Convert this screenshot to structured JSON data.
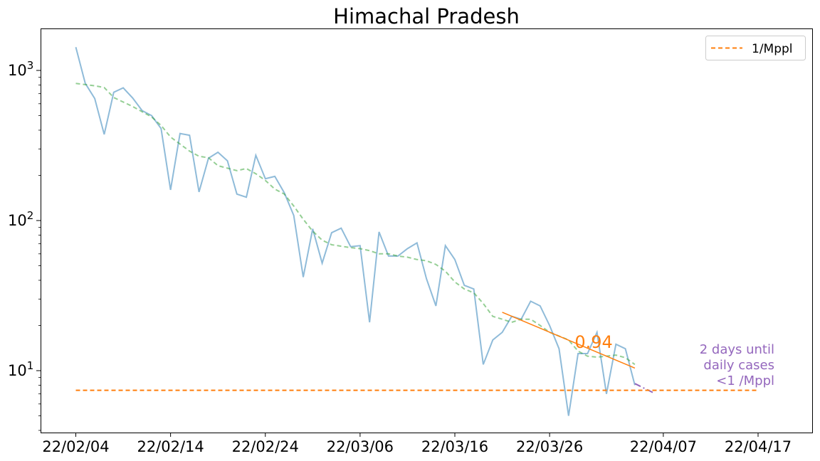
{
  "chart_data": {
    "type": "line",
    "title": "Himachal Pradesh",
    "xlabel": "",
    "ylabel": "",
    "yscale": "log",
    "ylim": [
      4,
      1900
    ],
    "x_tick_labels": [
      "22/02/04",
      "22/02/14",
      "22/02/24",
      "22/03/06",
      "22/03/16",
      "22/03/26",
      "22/04/07",
      "22/04/17"
    ],
    "y_tick_labels": [
      {
        "base": "10",
        "exp": "1",
        "value": 10
      },
      {
        "base": "10",
        "exp": "2",
        "value": 100
      },
      {
        "base": "10",
        "exp": "3",
        "value": 1000
      }
    ],
    "grid": false,
    "legend": {
      "position": "top-right",
      "entries": [
        {
          "label": "1/Mppl",
          "style": "dashed",
          "color": "#ff7f0e"
        }
      ]
    },
    "series": [
      {
        "role": "daily",
        "color": "#1f77b4",
        "opacity": 0.5,
        "style": "solid",
        "points": [
          [
            "2022-02-04",
            1430
          ],
          [
            "2022-02-05",
            820
          ],
          [
            "2022-02-06",
            650
          ],
          [
            "2022-02-07",
            375
          ],
          [
            "2022-02-08",
            715
          ],
          [
            "2022-02-09",
            765
          ],
          [
            "2022-02-10",
            655
          ],
          [
            "2022-02-11",
            540
          ],
          [
            "2022-02-12",
            500
          ],
          [
            "2022-02-13",
            410
          ],
          [
            "2022-02-14",
            160
          ],
          [
            "2022-02-15",
            380
          ],
          [
            "2022-02-16",
            370
          ],
          [
            "2022-02-17",
            155
          ],
          [
            "2022-02-18",
            260
          ],
          [
            "2022-02-19",
            285
          ],
          [
            "2022-02-20",
            250
          ],
          [
            "2022-02-21",
            150
          ],
          [
            "2022-02-22",
            143
          ],
          [
            "2022-02-23",
            272
          ],
          [
            "2022-02-24",
            190
          ],
          [
            "2022-02-25",
            197
          ],
          [
            "2022-02-26",
            153
          ],
          [
            "2022-02-27",
            108
          ],
          [
            "2022-02-28",
            42
          ],
          [
            "2022-03-01",
            88
          ],
          [
            "2022-03-02",
            52
          ],
          [
            "2022-03-03",
            83
          ],
          [
            "2022-03-04",
            89
          ],
          [
            "2022-03-05",
            67
          ],
          [
            "2022-03-06",
            68
          ],
          [
            "2022-03-07",
            21
          ],
          [
            "2022-03-08",
            84
          ],
          [
            "2022-03-09",
            58
          ],
          [
            "2022-03-10",
            58
          ],
          [
            "2022-03-11",
            65
          ],
          [
            "2022-03-12",
            71
          ],
          [
            "2022-03-13",
            41
          ],
          [
            "2022-03-14",
            27
          ],
          [
            "2022-03-15",
            68
          ],
          [
            "2022-03-16",
            55
          ],
          [
            "2022-03-17",
            37
          ],
          [
            "2022-03-18",
            35
          ],
          [
            "2022-03-19",
            11
          ],
          [
            "2022-03-20",
            16
          ],
          [
            "2022-03-21",
            18
          ],
          [
            "2022-03-22",
            23
          ],
          [
            "2022-03-23",
            22
          ],
          [
            "2022-03-24",
            29
          ],
          [
            "2022-03-25",
            27
          ],
          [
            "2022-03-26",
            20
          ],
          [
            "2022-03-27",
            14
          ],
          [
            "2022-03-28",
            5
          ],
          [
            "2022-03-29",
            13
          ],
          [
            "2022-03-30",
            13
          ],
          [
            "2022-03-31",
            18
          ],
          [
            "2022-04-01",
            7
          ],
          [
            "2022-04-02",
            15
          ],
          [
            "2022-04-03",
            14
          ],
          [
            "2022-04-04",
            8
          ]
        ]
      },
      {
        "role": "smoothed",
        "color": "#2ca02c",
        "opacity": 0.5,
        "style": "dashed",
        "points": [
          [
            "2022-02-04",
            820
          ],
          [
            "2022-02-06",
            790
          ],
          [
            "2022-02-07",
            770
          ],
          [
            "2022-02-08",
            660
          ],
          [
            "2022-02-10",
            575
          ],
          [
            "2022-02-12",
            490
          ],
          [
            "2022-02-13",
            430
          ],
          [
            "2022-02-14",
            360
          ],
          [
            "2022-02-16",
            290
          ],
          [
            "2022-02-17",
            268
          ],
          [
            "2022-02-18",
            262
          ],
          [
            "2022-02-19",
            232
          ],
          [
            "2022-02-21",
            215
          ],
          [
            "2022-02-22",
            222
          ],
          [
            "2022-02-23",
            205
          ],
          [
            "2022-02-24",
            185
          ],
          [
            "2022-02-25",
            162
          ],
          [
            "2022-02-26",
            150
          ],
          [
            "2022-02-27",
            125
          ],
          [
            "2022-02-28",
            102
          ],
          [
            "2022-03-01",
            85
          ],
          [
            "2022-03-02",
            74
          ],
          [
            "2022-03-03",
            69
          ],
          [
            "2022-03-05",
            66
          ],
          [
            "2022-03-06",
            65
          ],
          [
            "2022-03-07",
            63
          ],
          [
            "2022-03-08",
            60
          ],
          [
            "2022-03-09",
            60
          ],
          [
            "2022-03-10",
            58
          ],
          [
            "2022-03-11",
            57
          ],
          [
            "2022-03-12",
            55
          ],
          [
            "2022-03-13",
            54
          ],
          [
            "2022-03-14",
            51
          ],
          [
            "2022-03-15",
            46
          ],
          [
            "2022-03-16",
            39
          ],
          [
            "2022-03-17",
            35
          ],
          [
            "2022-03-18",
            33
          ],
          [
            "2022-03-19",
            28
          ],
          [
            "2022-03-20",
            23
          ],
          [
            "2022-03-21",
            22
          ],
          [
            "2022-03-22",
            21
          ],
          [
            "2022-03-23",
            22
          ],
          [
            "2022-03-24",
            22
          ],
          [
            "2022-03-25",
            20
          ],
          [
            "2022-03-26",
            18
          ],
          [
            "2022-03-27",
            17
          ],
          [
            "2022-03-28",
            16
          ],
          [
            "2022-03-29",
            13.5
          ],
          [
            "2022-03-30",
            12.5
          ],
          [
            "2022-03-31",
            12.3
          ],
          [
            "2022-04-01",
            12.5
          ],
          [
            "2022-04-02",
            12.7
          ],
          [
            "2022-04-03",
            12.2
          ],
          [
            "2022-04-04",
            11
          ]
        ]
      },
      {
        "role": "trend-fit",
        "color": "#ff7f0e",
        "opacity": 1,
        "style": "solid",
        "points": [
          [
            "2022-03-21",
            24.5
          ],
          [
            "2022-04-04",
            10.4
          ]
        ]
      },
      {
        "role": "projection",
        "color": "#9467bd",
        "opacity": 1,
        "style": "dashdot",
        "points": [
          [
            "2022-04-04",
            8.2
          ],
          [
            "2022-04-06",
            7.1
          ]
        ]
      },
      {
        "name": "1/Mppl",
        "role": "threshold",
        "color": "#ff7f0e",
        "opacity": 1,
        "style": "dashed",
        "points": [
          [
            "2022-02-04",
            7.4
          ],
          [
            "2022-04-17",
            7.4
          ]
        ]
      }
    ],
    "annotations": {
      "rate": {
        "text": "0.94",
        "color": "#ff7f0e",
        "x": "2022-03-30",
        "y": 15.5
      },
      "forecast": {
        "lines": [
          "2 days until",
          "daily cases",
          "<1 /Mppl"
        ],
        "color": "#9467bd"
      }
    }
  }
}
